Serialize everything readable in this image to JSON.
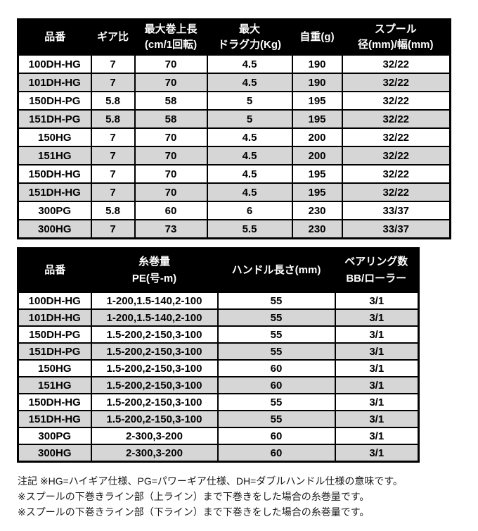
{
  "colors": {
    "header_bg": "#000000",
    "header_text": "#ffffff",
    "row_alt_bg": "#d6d6d6",
    "border": "#000000"
  },
  "tables": [
    {
      "name": "main-spec-table",
      "columns": [
        {
          "lines": [
            "品番"
          ]
        },
        {
          "lines": [
            "ギア比"
          ]
        },
        {
          "lines": [
            "最大巻上長",
            "(cm/1回転)"
          ]
        },
        {
          "lines": [
            "最大",
            "ドラグ力(Kg)"
          ]
        },
        {
          "lines": [
            "自重(g)"
          ]
        },
        {
          "lines": [
            "スプール",
            "径(mm)/幅(mm)"
          ]
        }
      ],
      "rows": [
        [
          "100DH-HG",
          "7",
          "70",
          "4.5",
          "190",
          "32/22"
        ],
        [
          "101DH-HG",
          "7",
          "70",
          "4.5",
          "190",
          "32/22"
        ],
        [
          "150DH-PG",
          "5.8",
          "58",
          "5",
          "195",
          "32/22"
        ],
        [
          "151DH-PG",
          "5.8",
          "58",
          "5",
          "195",
          "32/22"
        ],
        [
          "150HG",
          "7",
          "70",
          "4.5",
          "200",
          "32/22"
        ],
        [
          "151HG",
          "7",
          "70",
          "4.5",
          "200",
          "32/22"
        ],
        [
          "150DH-HG",
          "7",
          "70",
          "4.5",
          "195",
          "32/22"
        ],
        [
          "151DH-HG",
          "7",
          "70",
          "4.5",
          "195",
          "32/22"
        ],
        [
          "300PG",
          "5.8",
          "60",
          "6",
          "230",
          "33/37"
        ],
        [
          "300HG",
          "7",
          "73",
          "5.5",
          "230",
          "33/37"
        ]
      ]
    },
    {
      "name": "line-capacity-table",
      "columns": [
        {
          "lines": [
            "品番"
          ]
        },
        {
          "lines": [
            "糸巻量",
            "PE(号-m)"
          ]
        },
        {
          "lines": [
            "ハンドル長さ(mm)"
          ]
        },
        {
          "lines": [
            "ベアリング数",
            "BB/ローラー"
          ]
        }
      ],
      "rows": [
        [
          "100DH-HG",
          "1-200,1.5-140,2-100",
          "55",
          "3/1"
        ],
        [
          "101DH-HG",
          "1-200,1.5-140,2-100",
          "55",
          "3/1"
        ],
        [
          "150DH-PG",
          "1.5-200,2-150,3-100",
          "55",
          "3/1"
        ],
        [
          "151DH-PG",
          "1.5-200,2-150,3-100",
          "55",
          "3/1"
        ],
        [
          "150HG",
          "1.5-200,2-150,3-100",
          "60",
          "3/1"
        ],
        [
          "151HG",
          "1.5-200,2-150,3-100",
          "60",
          "3/1"
        ],
        [
          "150DH-HG",
          "1.5-200,2-150,3-100",
          "55",
          "3/1"
        ],
        [
          "151DH-HG",
          "1.5-200,2-150,3-100",
          "55",
          "3/1"
        ],
        [
          "300PG",
          "2-300,3-200",
          "60",
          "3/1"
        ],
        [
          "300HG",
          "2-300,3-200",
          "60",
          "3/1"
        ]
      ]
    }
  ],
  "footnotes": [
    "注記 ※HG=ハイギア仕様、PG=パワーギア仕様、DH=ダブルハンドル仕様の意味です。",
    "※スプールの下巻きライン部（上ライン）まで下巻きをした場合の糸巻量です。",
    "※スプールの下巻きライン部（下ライン）まで下巻きをした場合の糸巻量です。"
  ]
}
